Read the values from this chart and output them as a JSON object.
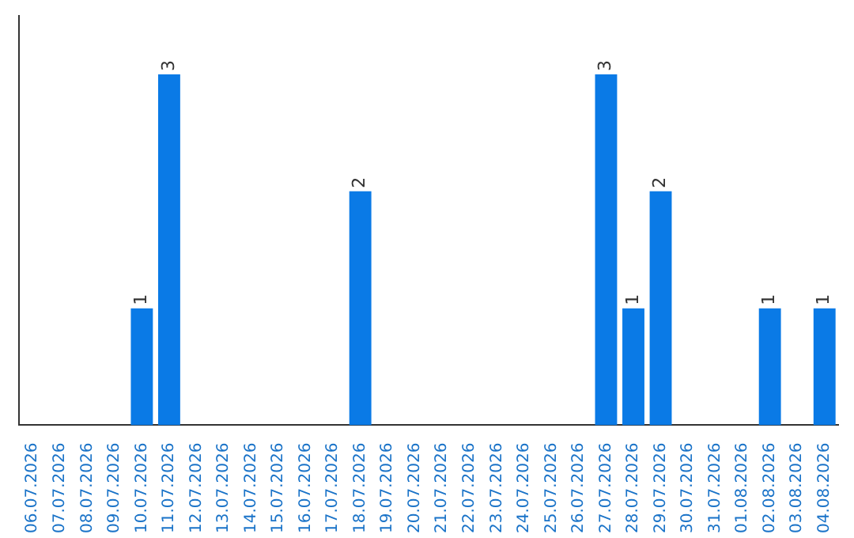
{
  "chart_data": {
    "type": "bar",
    "categories": [
      "06.07.2026",
      "07.07.2026",
      "08.07.2026",
      "09.07.2026",
      "10.07.2026",
      "11.07.2026",
      "12.07.2026",
      "13.07.2026",
      "14.07.2026",
      "15.07.2026",
      "16.07.2026",
      "17.07.2026",
      "18.07.2026",
      "19.07.2026",
      "20.07.2026",
      "21.07.2026",
      "22.07.2026",
      "23.07.2026",
      "24.07.2026",
      "25.07.2026",
      "26.07.2026",
      "27.07.2026",
      "28.07.2026",
      "29.07.2026",
      "30.07.2026",
      "31.07.2026",
      "01.08.2026",
      "02.08.2026",
      "03.08.2026",
      "04.08.2026"
    ],
    "values": [
      null,
      null,
      null,
      null,
      1,
      3,
      null,
      null,
      null,
      null,
      null,
      null,
      2,
      null,
      null,
      null,
      null,
      null,
      null,
      null,
      null,
      3,
      1,
      2,
      null,
      null,
      null,
      1,
      null,
      1
    ],
    "color": "#0a7ae6",
    "data_labels": true,
    "tick_labels": "x",
    "grid": false,
    "legend": false
  }
}
